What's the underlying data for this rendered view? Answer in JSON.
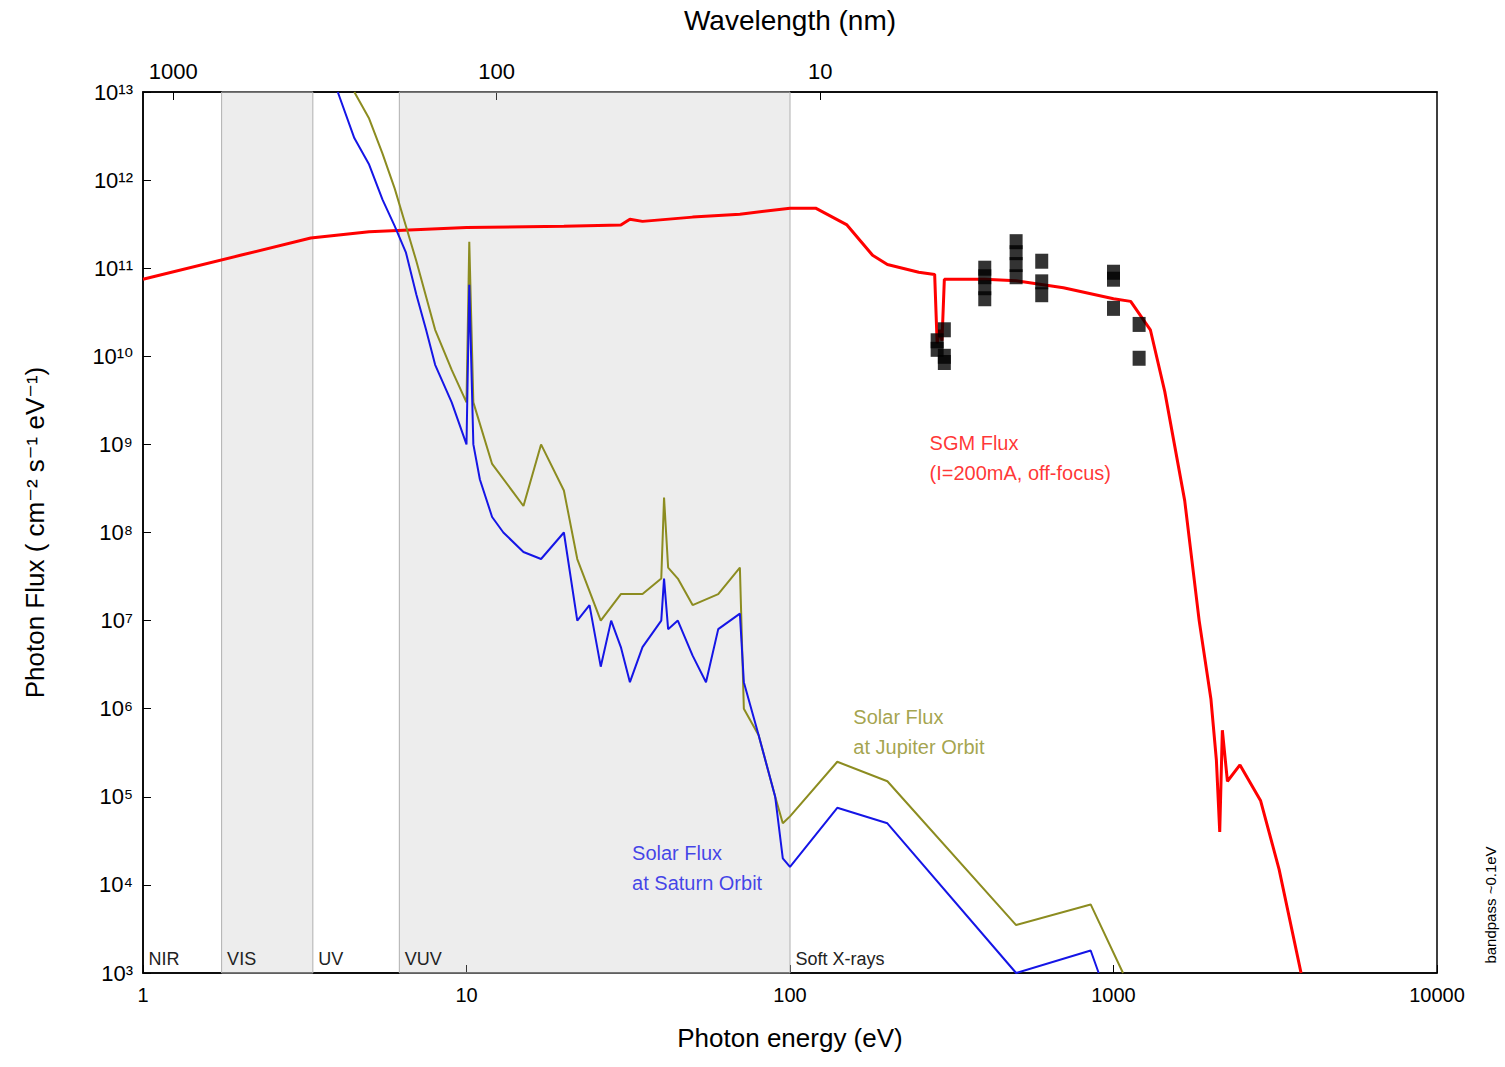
{
  "chart_data": {
    "type": "line",
    "log": true,
    "grid": false,
    "xlabel": "Photon energy (eV)",
    "ylabel": "Photon Flux ( cm⁻² s⁻¹ eV⁻¹)",
    "x2label": "Wavelength (nm)",
    "xlim": [
      1,
      10000
    ],
    "xticks": [
      1,
      10,
      100,
      1000,
      10000
    ],
    "x2lim": [
      1240,
      0.124
    ],
    "x2ticks": [
      1000,
      100,
      10
    ],
    "ylim": [
      1000,
      10000000000000.0
    ],
    "yticks": [
      {
        "value": 1000.0,
        "label": "10³"
      },
      {
        "value": 10000.0,
        "label": "10⁴"
      },
      {
        "value": 100000.0,
        "label": "10⁵"
      },
      {
        "value": 1000000.0,
        "label": "10⁶"
      },
      {
        "value": 10000000.0,
        "label": "10⁷"
      },
      {
        "value": 100000000.0,
        "label": "10⁸"
      },
      {
        "value": 1000000000.0,
        "label": "10⁹"
      },
      {
        "value": 10000000000.0,
        "label": "10¹⁰"
      },
      {
        "value": 100000000000.0,
        "label": "10¹¹"
      },
      {
        "value": 1000000000000.0,
        "label": "10¹²"
      },
      {
        "value": 10000000000000.0,
        "label": "10¹³"
      }
    ],
    "note": "bandpass ~0.1eV",
    "regions": [
      {
        "label": "NIR",
        "from": 1,
        "to": 1.75,
        "shaded": false
      },
      {
        "label": "VIS",
        "from": 1.75,
        "to": 3.35,
        "shaded": true
      },
      {
        "label": "UV",
        "from": 3.35,
        "to": 6.2,
        "shaded": false
      },
      {
        "label": "VUV",
        "from": 6.2,
        "to": 100,
        "shaded": true
      },
      {
        "label": "Soft X-rays",
        "from": 100,
        "to": 10000,
        "shaded": false
      }
    ],
    "series": [
      {
        "name": "SGM Flux\n(I=200mA, off-focus)",
        "color": "#ff0000",
        "type": "line",
        "name_at": [
          270,
          700000000.0
        ],
        "x": [
          1,
          2,
          3.3,
          5,
          10,
          20,
          30,
          32,
          35,
          50,
          70,
          100,
          120,
          150,
          180,
          200,
          250,
          280,
          285,
          290,
          295,
          300,
          400,
          500,
          700,
          1000,
          1130,
          1300,
          1440,
          1660,
          1840,
          2000,
          2080,
          2130,
          2170,
          2250,
          2460,
          2850,
          3250,
          3800
        ],
        "values": [
          75000000000.0,
          140000000000.0,
          220000000000.0,
          260000000000.0,
          290000000000.0,
          300000000000.0,
          310000000000.0,
          360000000000.0,
          340000000000.0,
          380000000000.0,
          410000000000.0,
          480000000000.0,
          480000000000.0,
          310000000000.0,
          140000000000.0,
          110000000000.0,
          90000000000.0,
          85000000000.0,
          14000000000.0,
          20000000000.0,
          15000000000.0,
          75000000000.0,
          75000000000.0,
          72000000000.0,
          60000000000.0,
          45000000000.0,
          42000000000.0,
          20000000000.0,
          4000000000.0,
          230000000.0,
          10000000.0,
          1300000.0,
          260000.0,
          40000.0,
          570000.0,
          150000.0,
          230000.0,
          90000.0,
          15000.0,
          1000.0
        ]
      },
      {
        "name": "Solar Flux\nat Jupiter Orbit",
        "color": "#8c8c20",
        "type": "line",
        "name_at": [
          157,
          550000.0
        ],
        "x": [
          4.5,
          5,
          5.5,
          6,
          6.5,
          7,
          8,
          9,
          10,
          10.2,
          10.5,
          12,
          15,
          17,
          20,
          22,
          26,
          30,
          35,
          40,
          40.8,
          42,
          45,
          50,
          60,
          70,
          72,
          80,
          90,
          95,
          100,
          140,
          200,
          500,
          850,
          1070
        ],
        "values": [
          10000000000000.0,
          5000000000000.0,
          2000000000000.0,
          800000000000.0,
          300000000000.0,
          120000000000.0,
          20000000000.0,
          7000000000.0,
          3000000000.0,
          200000000000.0,
          3000000000.0,
          600000000.0,
          200000000.0,
          1000000000.0,
          300000000.0,
          50000000.0,
          10000000.0,
          20000000.0,
          20000000.0,
          30000000.0,
          250000000.0,
          40000000.0,
          30000000.0,
          15000000.0,
          20000000.0,
          40000000.0,
          1000000.0,
          500000.0,
          100000.0,
          50000.0,
          60000.0,
          250000.0,
          150000.0,
          3500.0,
          6000.0,
          1000.0
        ]
      },
      {
        "name": "Solar Flux\nat Saturn Orbit",
        "color": "#1515e6",
        "type": "line",
        "name_at": [
          32.5,
          15500.0
        ],
        "x": [
          4,
          4.5,
          5,
          5.5,
          6,
          6.5,
          7,
          7.5,
          8,
          9,
          10,
          10.2,
          10.5,
          11,
          12,
          13,
          15,
          17,
          20,
          22,
          24,
          26,
          28,
          30,
          32,
          35,
          40,
          40.8,
          42,
          45,
          50,
          55,
          60,
          70,
          72,
          80,
          90,
          95,
          100,
          140,
          200,
          500,
          850,
          900
        ],
        "values": [
          10000000000000.0,
          3000000000000.0,
          1500000000000.0,
          600000000000.0,
          300000000000.0,
          150000000000.0,
          50000000000.0,
          20000000000.0,
          8000000000.0,
          3000000000.0,
          1000000000.0,
          65000000000.0,
          1000000000.0,
          400000000.0,
          150000000.0,
          100000000.0,
          60000000.0,
          50000000.0,
          100000000.0,
          10000000.0,
          15000000.0,
          3000000.0,
          10000000.0,
          5000000.0,
          2000000.0,
          5000000.0,
          10000000.0,
          30000000.0,
          8000000.0,
          10000000.0,
          4000000.0,
          2000000.0,
          8000000.0,
          12000000.0,
          2000000.0,
          500000.0,
          100000.0,
          20000.0,
          16000.0,
          75000.0,
          50000.0,
          1000.0,
          1800.0,
          1000.0
        ]
      },
      {
        "color": "#000000",
        "type": "scatter",
        "marker": "square",
        "x": [
          285,
          285,
          300,
          300,
          300,
          400,
          400,
          400,
          400,
          500,
          500,
          500,
          500,
          600,
          600,
          600,
          1000,
          1000,
          1000,
          1200,
          1200
        ],
        "values": [
          12000000000.0,
          15000000000.0,
          20000000000.0,
          10000000000.0,
          8500000000.0,
          100000000000.0,
          80000000000.0,
          60000000000.0,
          45000000000.0,
          200000000000.0,
          150000000000.0,
          110000000000.0,
          80000000000.0,
          120000000000.0,
          70000000000.0,
          50000000000.0,
          90000000000.0,
          75000000000.0,
          35000000000.0,
          23000000000.0,
          9500000000.0
        ]
      }
    ]
  }
}
